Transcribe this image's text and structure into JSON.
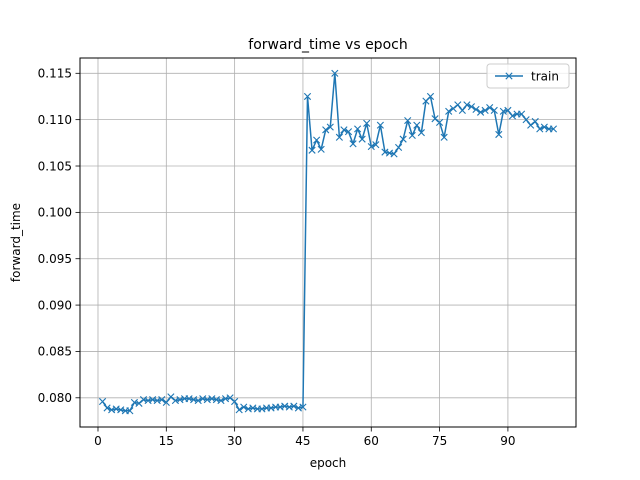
{
  "chart_data": {
    "type": "line",
    "title": "forward_time vs epoch",
    "xlabel": "epoch",
    "ylabel": "forward_time",
    "xlim": [
      -3.95,
      104.95
    ],
    "ylim": [
      0.07685,
      0.11665
    ],
    "xticks": [
      0,
      15,
      30,
      45,
      60,
      75,
      90
    ],
    "xtick_labels": [
      "0",
      "15",
      "30",
      "45",
      "60",
      "75",
      "90"
    ],
    "yticks": [
      0.08,
      0.085,
      0.09,
      0.095,
      0.1,
      0.105,
      0.11,
      0.115
    ],
    "ytick_labels": [
      "0.080",
      "0.085",
      "0.090",
      "0.095",
      "0.100",
      "0.105",
      "0.110",
      "0.115"
    ],
    "grid": true,
    "legend_position": "top-right",
    "series": [
      {
        "name": "train",
        "color": "#1f77b4",
        "marker": "x",
        "x": [
          1,
          2,
          3,
          4,
          5,
          6,
          7,
          8,
          9,
          10,
          11,
          12,
          13,
          14,
          15,
          16,
          17,
          18,
          19,
          20,
          21,
          22,
          23,
          24,
          25,
          26,
          27,
          28,
          29,
          30,
          31,
          32,
          33,
          34,
          35,
          36,
          37,
          38,
          39,
          40,
          41,
          42,
          43,
          44,
          45,
          46,
          47,
          48,
          49,
          50,
          51,
          52,
          53,
          54,
          55,
          56,
          57,
          58,
          59,
          60,
          61,
          62,
          63,
          64,
          65,
          66,
          67,
          68,
          69,
          70,
          71,
          72,
          73,
          74,
          75,
          76,
          77,
          78,
          79,
          80,
          81,
          82,
          83,
          84,
          85,
          86,
          87,
          88,
          89,
          90,
          91,
          92,
          93,
          94,
          95,
          96,
          97,
          98,
          99,
          100
        ],
        "y": [
          0.0796,
          0.0789,
          0.0787,
          0.0788,
          0.0787,
          0.0786,
          0.0786,
          0.0795,
          0.0794,
          0.0798,
          0.0797,
          0.0798,
          0.0797,
          0.0798,
          0.0795,
          0.0801,
          0.0797,
          0.0798,
          0.0799,
          0.0799,
          0.0798,
          0.0797,
          0.0799,
          0.0798,
          0.0799,
          0.0798,
          0.0797,
          0.0799,
          0.08,
          0.0796,
          0.0787,
          0.079,
          0.0788,
          0.0789,
          0.0788,
          0.0788,
          0.0789,
          0.0789,
          0.079,
          0.079,
          0.0791,
          0.079,
          0.0791,
          0.0789,
          0.079,
          0.1125,
          0.1067,
          0.1078,
          0.1068,
          0.1089,
          0.1092,
          0.115,
          0.1081,
          0.1089,
          0.1087,
          0.1074,
          0.109,
          0.1079,
          0.1096,
          0.1071,
          0.1073,
          0.1094,
          0.1065,
          0.1064,
          0.1063,
          0.107,
          0.1079,
          0.1099,
          0.1083,
          0.1094,
          0.1086,
          0.112,
          0.1125,
          0.1101,
          0.1097,
          0.1081,
          0.1109,
          0.1112,
          0.1116,
          0.111,
          0.1116,
          0.1114,
          0.1111,
          0.1108,
          0.111,
          0.1113,
          0.111,
          0.1084,
          0.1109,
          0.111,
          0.1104,
          0.1106,
          0.1106,
          0.11,
          0.1094,
          0.1098,
          0.109,
          0.1092,
          0.109,
          0.109
        ]
      }
    ]
  }
}
